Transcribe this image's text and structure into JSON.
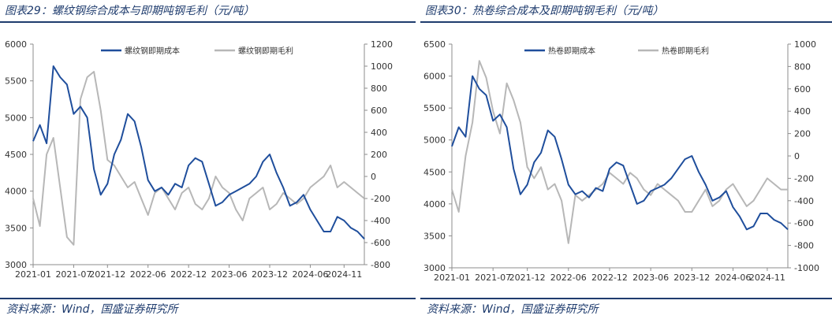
{
  "chart_data": [
    {
      "type": "line",
      "title": "图表29：螺纹钢综合成本与即期吨钢毛利（元/吨）",
      "x_tick_labels": [
        "2021-01",
        "2021-07",
        "2021-12",
        "2022-06",
        "2022-12",
        "2023-06",
        "2023-12",
        "2024-06",
        "2024-11"
      ],
      "x_range": [
        "2021-01",
        "2025-02"
      ],
      "y_left_range": [
        3000,
        6000
      ],
      "y_left_ticks": [
        "3000",
        "3500",
        "4000",
        "4500",
        "5000",
        "5500",
        "6000"
      ],
      "y_right_range": [
        -800,
        1200
      ],
      "y_right_ticks": [
        "-800",
        "-600",
        "-400",
        "-200",
        "0",
        "200",
        "400",
        "600",
        "800",
        "1000",
        "1200"
      ],
      "legend_position": "top-center",
      "grid": false,
      "series": [
        {
          "name": "螺纹钢即期成本",
          "axis": "left",
          "color": "#1f4e9c",
          "x": [
            "2021-01",
            "2021-02",
            "2021-03",
            "2021-04",
            "2021-05",
            "2021-06",
            "2021-07",
            "2021-08",
            "2021-09",
            "2021-10",
            "2021-11",
            "2021-12",
            "2022-01",
            "2022-02",
            "2022-03",
            "2022-04",
            "2022-05",
            "2022-06",
            "2022-07",
            "2022-08",
            "2022-09",
            "2022-10",
            "2022-11",
            "2022-12",
            "2023-01",
            "2023-02",
            "2023-03",
            "2023-04",
            "2023-05",
            "2023-06",
            "2023-07",
            "2023-08",
            "2023-09",
            "2023-10",
            "2023-11",
            "2023-12",
            "2024-01",
            "2024-02",
            "2024-03",
            "2024-04",
            "2024-05",
            "2024-06",
            "2024-07",
            "2024-08",
            "2024-09",
            "2024-10",
            "2024-11",
            "2024-12",
            "2025-01",
            "2025-02"
          ],
          "values": [
            4680,
            4900,
            4650,
            5700,
            5550,
            5450,
            5050,
            5150,
            5000,
            4300,
            3950,
            4100,
            4500,
            4700,
            5050,
            4950,
            4600,
            4150,
            4000,
            4050,
            3950,
            4100,
            4050,
            4350,
            4450,
            4400,
            4100,
            3800,
            3850,
            3950,
            4000,
            4050,
            4100,
            4200,
            4400,
            4500,
            4250,
            4050,
            3800,
            3850,
            3950,
            3750,
            3600,
            3450,
            3450,
            3650,
            3600,
            3500,
            3450,
            3350
          ]
        },
        {
          "name": "螺纹钢即期毛利",
          "axis": "right",
          "color": "#b7b7b7",
          "x": [
            "2021-01",
            "2021-02",
            "2021-03",
            "2021-04",
            "2021-05",
            "2021-06",
            "2021-07",
            "2021-08",
            "2021-09",
            "2021-10",
            "2021-11",
            "2021-12",
            "2022-01",
            "2022-02",
            "2022-03",
            "2022-04",
            "2022-05",
            "2022-06",
            "2022-07",
            "2022-08",
            "2022-09",
            "2022-10",
            "2022-11",
            "2022-12",
            "2023-01",
            "2023-02",
            "2023-03",
            "2023-04",
            "2023-05",
            "2023-06",
            "2023-07",
            "2023-08",
            "2023-09",
            "2023-10",
            "2023-11",
            "2023-12",
            "2024-01",
            "2024-02",
            "2024-03",
            "2024-04",
            "2024-05",
            "2024-06",
            "2024-07",
            "2024-08",
            "2024-09",
            "2024-10",
            "2024-11",
            "2024-12",
            "2025-01",
            "2025-02"
          ],
          "values": [
            -200,
            -450,
            200,
            350,
            -100,
            -550,
            -620,
            700,
            900,
            950,
            600,
            150,
            100,
            0,
            -100,
            -50,
            -200,
            -350,
            -150,
            -100,
            -200,
            -300,
            -150,
            -100,
            -250,
            -300,
            -200,
            0,
            -100,
            -150,
            -300,
            -400,
            -200,
            -150,
            -100,
            -300,
            -250,
            -150,
            -200,
            -250,
            -200,
            -100,
            -50,
            0,
            100,
            -100,
            -50,
            -100,
            -150,
            -200
          ]
        }
      ]
    },
    {
      "type": "line",
      "title": "图表30：热卷综合成本及即期吨钢毛利（元/吨）",
      "x_tick_labels": [
        "2021-01",
        "2021-07",
        "2021-12",
        "2022-06",
        "2022-12",
        "2023-06",
        "2023-12",
        "2024-06",
        "2024-11"
      ],
      "x_range": [
        "2021-01",
        "2025-02"
      ],
      "y_left_range": [
        3000,
        6500
      ],
      "y_left_ticks": [
        "3000",
        "3500",
        "4000",
        "4500",
        "5000",
        "5500",
        "6000",
        "6500"
      ],
      "y_right_range": [
        -1000,
        1000
      ],
      "y_right_ticks": [
        "-1000",
        "-800",
        "-600",
        "-400",
        "-200",
        "0",
        "200",
        "400",
        "600",
        "800",
        "1000"
      ],
      "legend_position": "top-center",
      "grid": false,
      "series": [
        {
          "name": "热卷即期成本",
          "axis": "left",
          "color": "#1f4e9c",
          "x": [
            "2021-01",
            "2021-02",
            "2021-03",
            "2021-04",
            "2021-05",
            "2021-06",
            "2021-07",
            "2021-08",
            "2021-09",
            "2021-10",
            "2021-11",
            "2021-12",
            "2022-01",
            "2022-02",
            "2022-03",
            "2022-04",
            "2022-05",
            "2022-06",
            "2022-07",
            "2022-08",
            "2022-09",
            "2022-10",
            "2022-11",
            "2022-12",
            "2023-01",
            "2023-02",
            "2023-03",
            "2023-04",
            "2023-05",
            "2023-06",
            "2023-07",
            "2023-08",
            "2023-09",
            "2023-10",
            "2023-11",
            "2023-12",
            "2024-01",
            "2024-02",
            "2024-03",
            "2024-04",
            "2024-05",
            "2024-06",
            "2024-07",
            "2024-08",
            "2024-09",
            "2024-10",
            "2024-11",
            "2024-12",
            "2025-01",
            "2025-02"
          ],
          "values": [
            4900,
            5200,
            5050,
            6000,
            5800,
            5700,
            5300,
            5400,
            5200,
            4550,
            4150,
            4300,
            4650,
            4800,
            5150,
            5050,
            4700,
            4300,
            4150,
            4200,
            4100,
            4250,
            4200,
            4550,
            4650,
            4600,
            4300,
            4000,
            4050,
            4200,
            4250,
            4300,
            4400,
            4550,
            4700,
            4750,
            4500,
            4300,
            4050,
            4100,
            4200,
            3950,
            3800,
            3600,
            3650,
            3850,
            3850,
            3750,
            3700,
            3600
          ]
        },
        {
          "name": "热卷即期毛利",
          "axis": "right",
          "color": "#b7b7b7",
          "x": [
            "2021-01",
            "2021-02",
            "2021-03",
            "2021-04",
            "2021-05",
            "2021-06",
            "2021-07",
            "2021-08",
            "2021-09",
            "2021-10",
            "2021-11",
            "2021-12",
            "2022-01",
            "2022-02",
            "2022-03",
            "2022-04",
            "2022-05",
            "2022-06",
            "2022-07",
            "2022-08",
            "2022-09",
            "2022-10",
            "2022-11",
            "2022-12",
            "2023-01",
            "2023-02",
            "2023-03",
            "2023-04",
            "2023-05",
            "2023-06",
            "2023-07",
            "2023-08",
            "2023-09",
            "2023-10",
            "2023-11",
            "2023-12",
            "2024-01",
            "2024-02",
            "2024-03",
            "2024-04",
            "2024-05",
            "2024-06",
            "2024-07",
            "2024-08",
            "2024-09",
            "2024-10",
            "2024-11",
            "2024-12",
            "2025-01",
            "2025-02"
          ],
          "values": [
            -300,
            -500,
            0,
            300,
            850,
            700,
            400,
            200,
            650,
            500,
            300,
            -100,
            -200,
            -100,
            -300,
            -250,
            -400,
            -780,
            -350,
            -400,
            -350,
            -300,
            -250,
            -150,
            -200,
            -250,
            -150,
            -200,
            -300,
            -350,
            -250,
            -300,
            -350,
            -400,
            -500,
            -500,
            -400,
            -300,
            -450,
            -400,
            -300,
            -250,
            -350,
            -450,
            -400,
            -300,
            -200,
            -250,
            -300,
            -300
          ]
        }
      ]
    }
  ],
  "panels": [
    {
      "title": "图表29：螺纹钢综合成本与即期吨钢毛利（元/吨）",
      "source": "资料来源：Wind，国盛证券研究所"
    },
    {
      "title": "图表30：热卷综合成本及即期吨钢毛利（元/吨）",
      "source": "资料来源：Wind，国盛证券研究所"
    }
  ]
}
